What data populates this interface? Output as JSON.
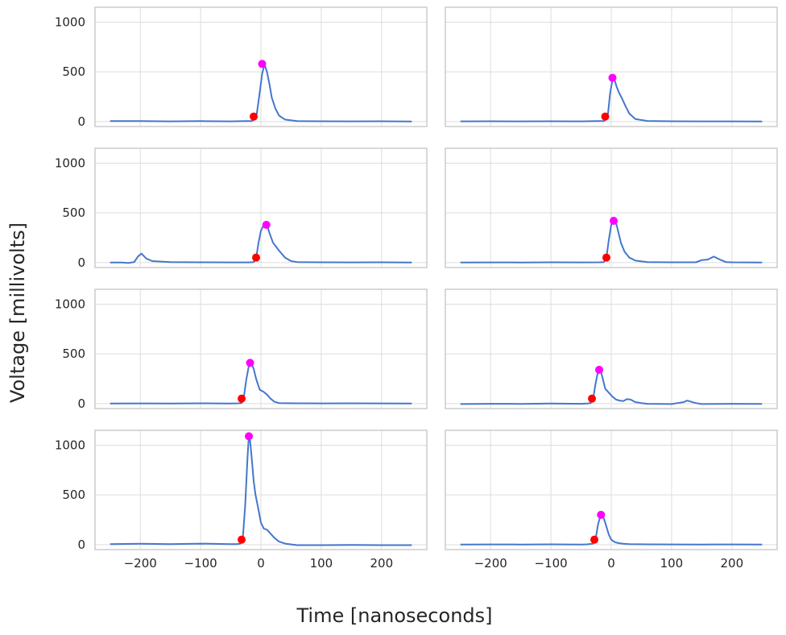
{
  "chart_data": {
    "type": "line",
    "layout": "4x2 small multiples, shared x and y axes",
    "xlabel": "Time [nanoseconds]",
    "ylabel": "Voltage [millivolts]",
    "xlim": [
      -275,
      275
    ],
    "ylim": [
      -50,
      1150
    ],
    "xticks": [
      -200,
      -100,
      0,
      100,
      200
    ],
    "xtick_labels": [
      "−200",
      "−100",
      "0",
      "100",
      "200"
    ],
    "yticks": [
      0,
      500,
      1000
    ],
    "ytick_labels": [
      "0",
      "500",
      "1000"
    ],
    "grid": true,
    "colors": {
      "line": "#4477cc",
      "start_marker": "#ff0000",
      "peak_marker": "#ff00ff",
      "grid": "#dddddd",
      "frame": "#cccccc"
    },
    "panels": [
      {
        "x": [
          -250,
          -200,
          -150,
          -100,
          -50,
          -25,
          -15,
          -8,
          -3,
          2,
          6,
          10,
          14,
          18,
          24,
          30,
          40,
          60,
          100,
          150,
          200,
          250
        ],
        "y": [
          4,
          4,
          2,
          4,
          2,
          4,
          5,
          30,
          250,
          480,
          575,
          500,
          380,
          240,
          130,
          60,
          20,
          5,
          3,
          2,
          3,
          0
        ],
        "start": [
          -12,
          50
        ],
        "peak": [
          2,
          580
        ]
      },
      {
        "x": [
          -250,
          -200,
          -150,
          -100,
          -50,
          -25,
          -12,
          -6,
          -2,
          2,
          5,
          9,
          13,
          18,
          24,
          30,
          40,
          60,
          100,
          150,
          200,
          250
        ],
        "y": [
          2,
          3,
          2,
          3,
          2,
          4,
          5,
          40,
          280,
          420,
          430,
          350,
          290,
          230,
          150,
          80,
          25,
          6,
          3,
          2,
          2,
          0
        ],
        "start": [
          -10,
          50
        ],
        "peak": [
          2,
          440
        ]
      },
      {
        "x": [
          -250,
          -230,
          -220,
          -210,
          -204,
          -198,
          -190,
          -180,
          -150,
          -100,
          -50,
          -20,
          -12,
          -8,
          -4,
          0,
          4,
          10,
          14,
          20,
          30,
          40,
          50,
          60,
          100,
          150,
          200,
          250
        ],
        "y": [
          0,
          0,
          -5,
          5,
          60,
          90,
          40,
          15,
          5,
          3,
          2,
          2,
          5,
          40,
          200,
          320,
          370,
          380,
          300,
          200,
          120,
          50,
          15,
          5,
          3,
          2,
          3,
          0
        ],
        "start": [
          -8,
          50
        ],
        "peak": [
          9,
          380
        ]
      },
      {
        "x": [
          -250,
          -200,
          -150,
          -100,
          -50,
          -20,
          -12,
          -8,
          -4,
          0,
          4,
          8,
          12,
          16,
          22,
          30,
          40,
          60,
          100,
          140,
          150,
          160,
          170,
          180,
          190,
          200,
          250
        ],
        "y": [
          0,
          2,
          1,
          3,
          2,
          3,
          5,
          50,
          230,
          380,
          420,
          400,
          300,
          200,
          110,
          50,
          20,
          5,
          3,
          3,
          25,
          30,
          60,
          30,
          5,
          3,
          0
        ],
        "start": [
          -8,
          50
        ],
        "peak": [
          4,
          420
        ]
      },
      {
        "x": [
          -250,
          -200,
          -150,
          -100,
          -50,
          -38,
          -32,
          -28,
          -24,
          -20,
          -16,
          -12,
          -8,
          -2,
          4,
          10,
          16,
          22,
          30,
          60,
          100,
          150,
          200,
          250
        ],
        "y": [
          0,
          2,
          1,
          3,
          1,
          3,
          5,
          80,
          250,
          380,
          410,
          350,
          250,
          140,
          120,
          90,
          50,
          20,
          5,
          3,
          2,
          3,
          2,
          0
        ],
        "start": [
          -32,
          50
        ],
        "peak": [
          -18,
          410
        ]
      },
      {
        "x": [
          -250,
          -200,
          -150,
          -100,
          -50,
          -40,
          -34,
          -30,
          -26,
          -22,
          -18,
          -14,
          -10,
          -4,
          2,
          8,
          14,
          20,
          26,
          32,
          40,
          50,
          60,
          100,
          110,
          120,
          126,
          132,
          140,
          150,
          200,
          250
        ],
        "y": [
          -5,
          -2,
          -3,
          0,
          -2,
          0,
          5,
          50,
          200,
          320,
          340,
          250,
          150,
          110,
          70,
          40,
          30,
          25,
          45,
          40,
          15,
          5,
          -2,
          -5,
          5,
          15,
          30,
          20,
          5,
          -5,
          -2,
          -3
        ],
        "start": [
          -32,
          50
        ],
        "peak": [
          -20,
          340
        ]
      },
      {
        "x": [
          -250,
          -200,
          -150,
          -100,
          -50,
          -40,
          -34,
          -30,
          -26,
          -22,
          -20,
          -18,
          -15,
          -12,
          -9,
          -5,
          0,
          5,
          10,
          16,
          22,
          30,
          40,
          60,
          100,
          150,
          200,
          250
        ],
        "y": [
          5,
          8,
          5,
          10,
          5,
          5,
          10,
          60,
          400,
          900,
          1090,
          1050,
          850,
          640,
          500,
          380,
          220,
          160,
          150,
          110,
          70,
          30,
          10,
          -5,
          -5,
          -3,
          -5,
          -5
        ],
        "start": [
          -32,
          50
        ],
        "peak": [
          -20,
          1090
        ]
      },
      {
        "x": [
          -250,
          -200,
          -150,
          -100,
          -50,
          -40,
          -30,
          -26,
          -22,
          -18,
          -15,
          -12,
          -8,
          -4,
          0,
          6,
          12,
          20,
          30,
          60,
          100,
          150,
          200,
          250
        ],
        "y": [
          0,
          2,
          1,
          3,
          1,
          3,
          10,
          50,
          200,
          290,
          300,
          260,
          180,
          100,
          50,
          25,
          15,
          8,
          5,
          3,
          2,
          1,
          2,
          0
        ],
        "start": [
          -28,
          50
        ],
        "peak": [
          -17,
          300
        ]
      }
    ]
  }
}
